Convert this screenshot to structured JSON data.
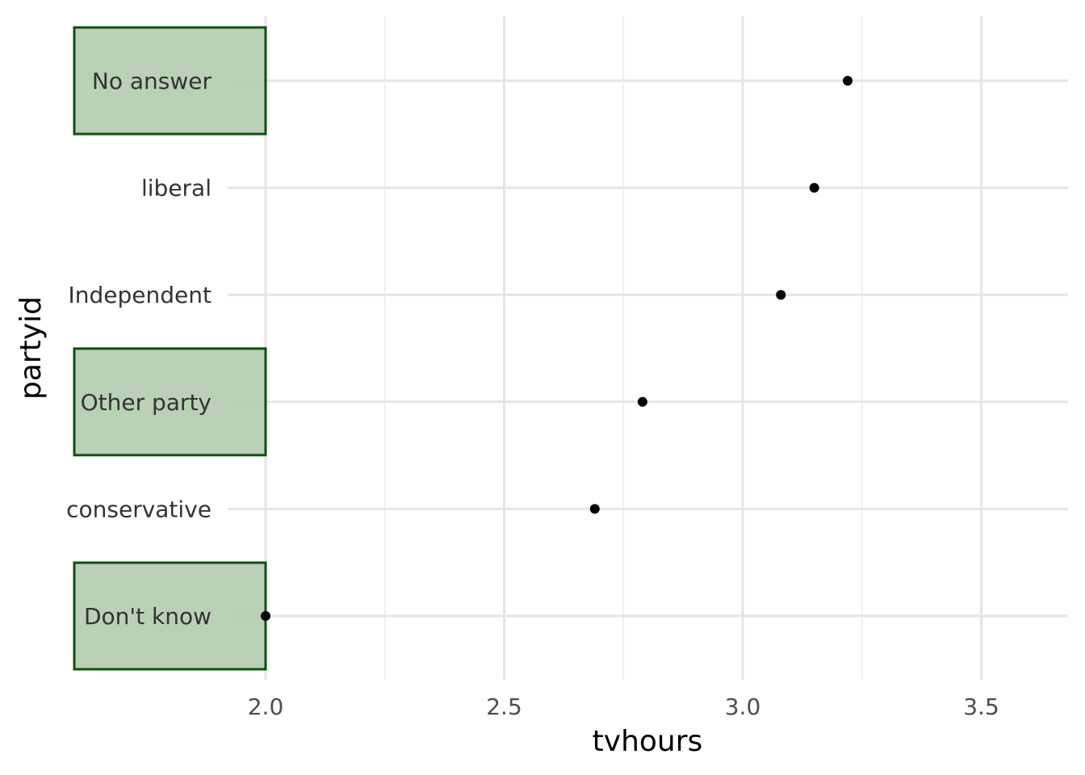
{
  "chart_data": {
    "type": "scatter",
    "title": "",
    "xlabel": "tvhours",
    "ylabel": "partyid",
    "xlim": [
      1.98,
      3.66
    ],
    "x_ticks": [
      {
        "value": 2.0,
        "label": "2.0"
      },
      {
        "value": 2.5,
        "label": "2.5"
      },
      {
        "value": 3.0,
        "label": "3.0"
      },
      {
        "value": 3.5,
        "label": "3.5"
      }
    ],
    "x_minor_ticks": [
      2.25,
      2.75,
      3.25
    ],
    "categories": [
      "No answer",
      "liberal",
      "Independent",
      "Other party",
      "conservative",
      "Don't know"
    ],
    "values": [
      3.22,
      3.15,
      3.08,
      2.79,
      2.69,
      2.0
    ],
    "highlighted": [
      "No answer",
      "Other party",
      "Don't know"
    ],
    "highlight_fill": "#b6cdb3",
    "highlight_stroke": "#0f4f0f",
    "point_color": "#000000",
    "grid": true,
    "legend": "none"
  }
}
